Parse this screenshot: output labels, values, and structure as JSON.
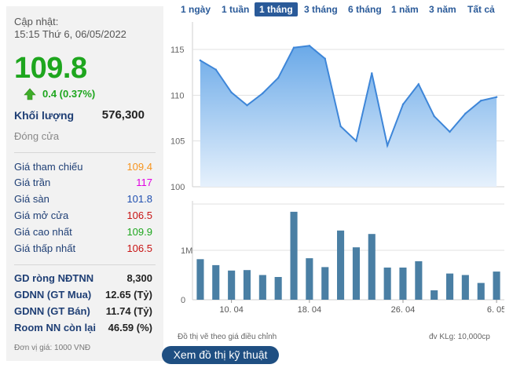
{
  "summary": {
    "updated_label": "Cập nhật:",
    "updated_time": "15:15 Thứ 6, 06/05/2022",
    "price": "109.8",
    "change": "0.4 (0.37%)",
    "volume_label": "Khối lượng",
    "volume_value": "576,300",
    "status": "Đóng cửa"
  },
  "prices": [
    {
      "label": "Giá tham chiếu",
      "value": "109.4",
      "color": "#f7941d"
    },
    {
      "label": "Giá trần",
      "value": "117",
      "color": "#e100e1"
    },
    {
      "label": "Giá sàn",
      "value": "101.8",
      "color": "#1f4fb0"
    },
    {
      "label": "Giá mở cửa",
      "value": "106.5",
      "color": "#c81414"
    },
    {
      "label": "Giá cao nhất",
      "value": "109.9",
      "color": "#1ea61e"
    },
    {
      "label": "Giá thấp nhất",
      "value": "106.5",
      "color": "#c81414"
    }
  ],
  "foreign": [
    {
      "label": "GD ròng NĐTNN",
      "value": "8,300"
    },
    {
      "label": "GDNN (GT Mua)",
      "value": "12.65 (Tỷ)"
    },
    {
      "label": "GDNN (GT Bán)",
      "value": "11.74 (Tỷ)"
    },
    {
      "label": "Room NN còn lại",
      "value": "46.59 (%)"
    }
  ],
  "unit_note": "Đơn vị giá: 1000 VNĐ",
  "periods": [
    "1 ngày",
    "1 tuần",
    "1 tháng",
    "3 tháng",
    "6 tháng",
    "1 năm",
    "3 năm",
    "Tất cả"
  ],
  "active_period": "1 tháng",
  "notes": {
    "adjusted": "Đồ thị vẽ theo giá điều chỉnh",
    "volume_unit": "đv KLg: 10,000cp"
  },
  "tech_button": "Xem đồ thị kỹ thuật",
  "colors": {
    "up": "#1ea61e",
    "line": "#3e86d8",
    "area_top": "#6aa9e8",
    "area_bottom": "#e6f1fc",
    "bar": "#4a7fa4",
    "accent": "#2a5a99"
  },
  "chart_data": [
    {
      "type": "area",
      "categories": [
        "07/04",
        "08/04",
        "11/04",
        "12/04",
        "13/04",
        "14/04",
        "15/04",
        "18/04",
        "19/04",
        "20/04",
        "21/04",
        "22/04",
        "25/04",
        "26/04",
        "27/04",
        "28/04",
        "29/04",
        "04/05",
        "05/05",
        "06/05"
      ],
      "x_ticks": [
        "10. 04",
        "18. 04",
        "26. 04",
        "6. 05"
      ],
      "y_ticks": [
        "100",
        "105",
        "110",
        "115"
      ],
      "ylim": [
        100,
        118
      ],
      "series": [
        {
          "values": [
            113.8,
            112.8,
            110.3,
            108.9,
            110.2,
            111.9,
            115.2,
            115.4,
            114.0,
            106.6,
            105.0,
            112.4,
            104.5,
            109.0,
            111.2,
            107.7,
            106.0,
            108.0,
            109.4,
            109.8
          ]
        }
      ],
      "grid": true
    },
    {
      "type": "bar",
      "categories": [
        "07/04",
        "08/04",
        "11/04",
        "12/04",
        "13/04",
        "14/04",
        "15/04",
        "18/04",
        "19/04",
        "20/04",
        "21/04",
        "22/04",
        "25/04",
        "26/04",
        "27/04",
        "28/04",
        "29/04",
        "04/05",
        "05/05",
        "06/05"
      ],
      "x_ticks": [
        "10. 04",
        "18. 04",
        "26. 04",
        "6. 05"
      ],
      "y_ticks": [
        "0",
        "1M"
      ],
      "ylim": [
        0,
        2000000
      ],
      "series": [
        {
          "values": [
            820000,
            700000,
            590000,
            600000,
            500000,
            460000,
            1780000,
            840000,
            660000,
            1400000,
            1060000,
            1330000,
            650000,
            650000,
            780000,
            190000,
            530000,
            500000,
            340000,
            570000
          ]
        }
      ],
      "grid": true
    }
  ]
}
